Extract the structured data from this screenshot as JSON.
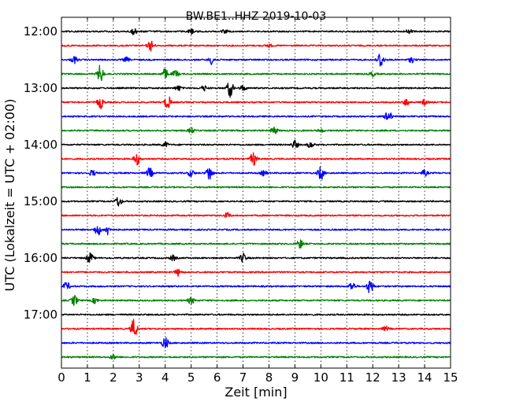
{
  "chart_data": {
    "type": "line",
    "title": "BW.BE1..HHZ 2019-10-03",
    "xlabel": "Zeit  [min]",
    "ylabel": "UTC (Lokalzeit = UTC + 02:00)",
    "xlim": [
      0,
      15
    ],
    "x_ticks": [
      0,
      1,
      2,
      3,
      4,
      5,
      6,
      7,
      8,
      9,
      10,
      11,
      12,
      13,
      14,
      15
    ],
    "x_tick_labels": [
      "0",
      "1",
      "2",
      "3",
      "4",
      "5",
      "6",
      "7",
      "8",
      "9",
      "10",
      "11",
      "12",
      "13",
      "14",
      "15"
    ],
    "vertical_grid": "dotted",
    "y_tick_labels": [
      "12:00",
      "13:00",
      "14:00",
      "15:00",
      "16:00",
      "17:00"
    ],
    "y_tick_every_n_traces": 4,
    "trace_colors": [
      "#000000",
      "#ff0000",
      "#0000ff",
      "#008000"
    ],
    "trace_duration_min": 15,
    "traces": [
      {
        "start": "12:00",
        "events": [
          [
            2.8,
            0.35
          ],
          [
            5.0,
            0.3
          ],
          [
            6.3,
            0.2
          ],
          [
            13.4,
            0.25
          ]
        ]
      },
      {
        "start": "12:15",
        "events": [
          [
            3.45,
            0.6
          ],
          [
            8.0,
            0.2
          ]
        ]
      },
      {
        "start": "12:30",
        "events": [
          [
            0.5,
            0.4
          ],
          [
            2.5,
            0.25
          ],
          [
            5.8,
            0.5
          ],
          [
            12.3,
            1.0
          ],
          [
            13.5,
            0.3
          ]
        ]
      },
      {
        "start": "12:45",
        "events": [
          [
            1.5,
            1.0
          ],
          [
            4.0,
            0.6
          ],
          [
            4.4,
            0.4
          ],
          [
            12.0,
            0.25
          ]
        ]
      },
      {
        "start": "13:00",
        "events": [
          [
            4.5,
            0.3
          ],
          [
            5.5,
            0.3
          ],
          [
            6.5,
            1.0
          ],
          [
            7.0,
            0.3
          ]
        ]
      },
      {
        "start": "13:15",
        "events": [
          [
            1.5,
            0.7
          ],
          [
            4.1,
            0.8
          ],
          [
            13.3,
            0.4
          ],
          [
            14.0,
            0.3
          ]
        ]
      },
      {
        "start": "13:30",
        "events": [
          [
            12.6,
            0.8
          ]
        ]
      },
      {
        "start": "13:45",
        "events": [
          [
            5.0,
            0.3
          ],
          [
            8.2,
            0.45
          ],
          [
            10.0,
            0.2
          ]
        ]
      },
      {
        "start": "14:00",
        "events": [
          [
            4.0,
            0.3
          ],
          [
            9.0,
            0.5
          ],
          [
            9.6,
            0.35
          ]
        ]
      },
      {
        "start": "14:15",
        "events": [
          [
            2.9,
            0.7
          ],
          [
            7.4,
            0.8
          ]
        ]
      },
      {
        "start": "14:30",
        "events": [
          [
            1.2,
            0.35
          ],
          [
            3.4,
            0.6
          ],
          [
            5.0,
            0.4
          ],
          [
            5.7,
            0.9
          ],
          [
            7.8,
            0.3
          ],
          [
            10.0,
            0.8
          ],
          [
            14.0,
            0.35
          ]
        ]
      },
      {
        "start": "14:45",
        "events": []
      },
      {
        "start": "15:00",
        "events": [
          [
            2.2,
            0.6
          ]
        ]
      },
      {
        "start": "15:15",
        "events": [
          [
            6.4,
            0.3
          ]
        ]
      },
      {
        "start": "15:30",
        "events": [
          [
            1.4,
            0.7
          ],
          [
            1.8,
            0.6
          ]
        ]
      },
      {
        "start": "15:45",
        "events": [
          [
            9.2,
            0.5
          ]
        ]
      },
      {
        "start": "16:00",
        "events": [
          [
            1.1,
            0.6
          ],
          [
            4.3,
            0.3
          ],
          [
            7.0,
            0.5
          ]
        ]
      },
      {
        "start": "16:15",
        "events": [
          [
            4.5,
            0.4
          ]
        ]
      },
      {
        "start": "16:30",
        "events": [
          [
            0.2,
            0.5
          ],
          [
            11.2,
            0.5
          ],
          [
            11.9,
            0.9
          ]
        ]
      },
      {
        "start": "16:45",
        "events": [
          [
            0.5,
            0.6
          ],
          [
            1.3,
            0.3
          ],
          [
            5.0,
            0.4
          ]
        ]
      },
      {
        "start": "17:00",
        "events": []
      },
      {
        "start": "17:15",
        "events": [
          [
            2.8,
            1.2
          ],
          [
            12.5,
            0.25
          ]
        ]
      },
      {
        "start": "17:30",
        "events": [
          [
            4.0,
            0.7
          ]
        ]
      },
      {
        "start": "17:45",
        "events": [
          [
            2.0,
            0.3
          ]
        ]
      }
    ]
  }
}
